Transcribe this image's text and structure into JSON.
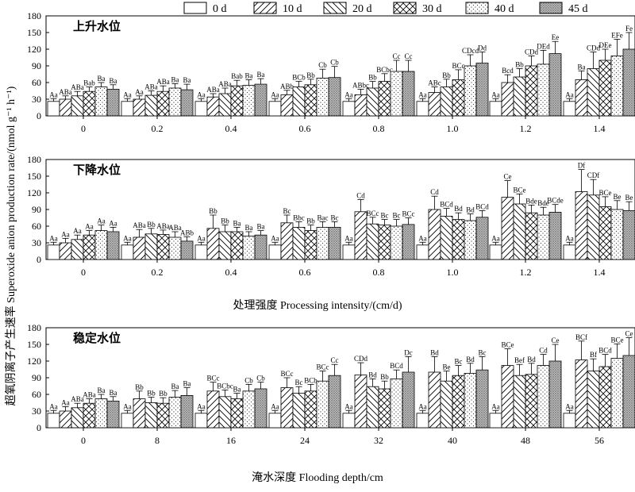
{
  "legend": {
    "items": [
      {
        "label": "0 d",
        "pattern": "p0"
      },
      {
        "label": "10 d",
        "pattern": "p10"
      },
      {
        "label": "20 d",
        "pattern": "p20"
      },
      {
        "label": "30 d",
        "pattern": "p30"
      },
      {
        "label": "40 d",
        "pattern": "p40"
      },
      {
        "label": "45 d",
        "pattern": "p45"
      }
    ]
  },
  "y_axis_title": "超氧阴离子产生速率 Superoxide anion production rate/(nmol g⁻¹ h⁻¹)",
  "chart_data": [
    {
      "type": "bar",
      "title": "上升水位",
      "xlabel": "",
      "ylabel": "",
      "ylim": [
        0,
        180
      ],
      "yticks": [
        0,
        30,
        60,
        90,
        120,
        150,
        180
      ],
      "categories": [
        "0",
        "0.2",
        "0.4",
        "0.6",
        "0.8",
        "1.0",
        "1.2",
        "1.4"
      ],
      "series": [
        {
          "name": "0 d",
          "values": [
            26,
            26,
            26,
            26,
            26,
            26,
            26,
            26
          ],
          "errors": [
            5,
            5,
            5,
            5,
            5,
            5,
            5,
            5
          ],
          "labels": [
            "Aa",
            "Aa",
            "Aa",
            "Aa",
            "Aa",
            "Aa",
            "Aa",
            "Aa"
          ]
        },
        {
          "name": "10 d",
          "values": [
            30,
            30,
            34,
            38,
            38,
            42,
            60,
            65
          ],
          "errors": [
            6,
            6,
            6,
            8,
            10,
            10,
            14,
            16
          ],
          "labels": [
            "ABa",
            "Aa",
            "ABa",
            "ABb",
            "ABbc",
            "ABc",
            "Bcd",
            "Ba"
          ]
        },
        {
          "name": "20 d",
          "values": [
            36,
            37,
            40,
            52,
            50,
            52,
            70,
            85
          ],
          "errors": [
            8,
            8,
            10,
            10,
            12,
            14,
            15,
            30
          ],
          "labels": [
            "ABa",
            "ABa",
            "ABa",
            "BCb",
            "Bb",
            "Bb",
            "Bb",
            "CDd"
          ]
        },
        {
          "name": "30 d",
          "values": [
            44,
            44,
            54,
            56,
            62,
            65,
            90,
            100
          ],
          "errors": [
            8,
            10,
            10,
            10,
            14,
            18,
            18,
            20
          ],
          "labels": [
            "Bab",
            "ABa",
            "Bab",
            "Bb",
            "BCbc",
            "BCc",
            "CDd",
            "DEe"
          ]
        },
        {
          "name": "40 d",
          "values": [
            52,
            50,
            55,
            68,
            80,
            90,
            93,
            108
          ],
          "errors": [
            8,
            8,
            10,
            16,
            20,
            20,
            25,
            30
          ],
          "labels": [
            "Ba",
            "Ba",
            "Ba",
            "Cb",
            "Cc",
            "CDcd",
            "DEd",
            "EFe"
          ]
        },
        {
          "name": "45 d",
          "values": [
            48,
            47,
            57,
            69,
            80,
            95,
            112,
            120
          ],
          "errors": [
            8,
            10,
            10,
            20,
            20,
            20,
            22,
            30
          ],
          "labels": [
            "Ba",
            "Ba",
            "Ba",
            "Cb",
            "Cc",
            "Dd",
            "Ee",
            "Fe"
          ]
        }
      ]
    },
    {
      "type": "bar",
      "title": "下降水位",
      "xlabel": "处理强度 Processing intensity/(cm/d)",
      "ylabel": "",
      "ylim": [
        0,
        180
      ],
      "yticks": [
        0,
        30,
        60,
        90,
        120,
        150,
        180
      ],
      "categories": [
        "0",
        "0.2",
        "0.4",
        "0.6",
        "0.8",
        "1.0",
        "1.2",
        "1.4"
      ],
      "series": [
        {
          "name": "0 d",
          "values": [
            26,
            26,
            26,
            26,
            26,
            26,
            26,
            26
          ],
          "errors": [
            5,
            5,
            5,
            5,
            5,
            5,
            5,
            5
          ],
          "labels": [
            "Aa",
            "Aa",
            "Aa",
            "Aa",
            "Aa",
            "Aa",
            "Aa",
            "Aa"
          ]
        },
        {
          "name": "10 d",
          "values": [
            30,
            40,
            56,
            66,
            86,
            90,
            112,
            122
          ],
          "errors": [
            8,
            14,
            24,
            14,
            22,
            24,
            30,
            40
          ],
          "labels": [
            "Aa",
            "ABa",
            "Bb",
            "Bc",
            "Cd",
            "Cd",
            "Ce",
            "Df"
          ]
        },
        {
          "name": "20 d",
          "values": [
            36,
            46,
            50,
            58,
            64,
            78,
            100,
            116
          ],
          "errors": [
            8,
            10,
            12,
            10,
            12,
            14,
            18,
            28
          ],
          "labels": [
            "Aa",
            "Bb",
            "Bb",
            "Bbc",
            "BCc",
            "BCd",
            "BCe",
            "CDf"
          ]
        },
        {
          "name": "30 d",
          "values": [
            44,
            45,
            50,
            52,
            62,
            72,
            84,
            95
          ],
          "errors": [
            8,
            8,
            8,
            10,
            10,
            12,
            14,
            18
          ],
          "labels": [
            "Aa",
            "ABa",
            "Ba",
            "Bb",
            "Bc",
            "Bd",
            "Bde",
            "BCe"
          ]
        },
        {
          "name": "40 d",
          "values": [
            52,
            40,
            42,
            58,
            60,
            70,
            80,
            90
          ],
          "errors": [
            10,
            10,
            8,
            10,
            12,
            12,
            14,
            16
          ],
          "labels": [
            "Aa",
            "ABa",
            "Ba",
            "Bac",
            "Bc",
            "Bd",
            "Bde",
            "Be"
          ]
        },
        {
          "name": "45 d",
          "values": [
            50,
            33,
            44,
            58,
            63,
            76,
            85,
            88
          ],
          "errors": [
            8,
            8,
            8,
            10,
            12,
            12,
            14,
            16
          ],
          "labels": [
            "Aa",
            "ABb",
            "Ba",
            "Bc",
            "BCc",
            "BCd",
            "BCde",
            "Be"
          ]
        }
      ]
    },
    {
      "type": "bar",
      "title": "稳定水位",
      "xlabel": "淹水深度 Flooding depth/cm",
      "ylabel": "",
      "ylim": [
        0,
        180
      ],
      "yticks": [
        0,
        30,
        60,
        90,
        120,
        150,
        180
      ],
      "categories": [
        "0",
        "8",
        "16",
        "24",
        "32",
        "40",
        "48",
        "56"
      ],
      "series": [
        {
          "name": "0 d",
          "values": [
            26,
            26,
            26,
            26,
            26,
            26,
            26,
            26
          ],
          "errors": [
            5,
            5,
            5,
            5,
            5,
            5,
            5,
            5
          ],
          "labels": [
            "Aa",
            "Aa",
            "Aa",
            "Aa",
            "Aa",
            "Aa",
            "Aa",
            "Aa"
          ]
        },
        {
          "name": "10 d",
          "values": [
            30,
            52,
            66,
            72,
            95,
            100,
            112,
            122
          ],
          "errors": [
            8,
            14,
            16,
            18,
            22,
            28,
            30,
            34
          ],
          "labels": [
            "Aa",
            "Bb",
            "BCc",
            "BCc",
            "CDd",
            "Bd",
            "BCe",
            "BCf"
          ]
        },
        {
          "name": "20 d",
          "values": [
            36,
            45,
            56,
            62,
            74,
            84,
            94,
            102
          ],
          "errors": [
            8,
            10,
            12,
            12,
            14,
            18,
            20,
            22
          ],
          "labels": [
            "ABa",
            "Bb",
            "BCbc",
            "Bc",
            "Bd",
            "Be",
            "Bef",
            "Bf"
          ]
        },
        {
          "name": "30 d",
          "values": [
            44,
            44,
            52,
            66,
            70,
            94,
            96,
            110
          ],
          "errors": [
            8,
            10,
            10,
            12,
            14,
            18,
            20,
            22
          ],
          "labels": [
            "ABa",
            "Bb",
            "Ba",
            "BCb",
            "Bb",
            "Bc",
            "Bd",
            "BCd"
          ]
        },
        {
          "name": "40 d",
          "values": [
            52,
            55,
            66,
            84,
            88,
            98,
            112,
            125
          ],
          "errors": [
            8,
            12,
            12,
            18,
            16,
            18,
            20,
            26
          ],
          "labels": [
            "Ba",
            "Ba",
            "Cb",
            "BCc",
            "BCd",
            "Bd",
            "Cd",
            "BCe"
          ]
        },
        {
          "name": "45 d",
          "values": [
            48,
            58,
            70,
            94,
            100,
            104,
            120,
            130
          ],
          "errors": [
            8,
            14,
            12,
            20,
            28,
            24,
            30,
            32
          ],
          "labels": [
            "Ba",
            "Ba",
            "Cb",
            "Cc",
            "Dc",
            "Bc",
            "Ce",
            "Ce"
          ]
        }
      ]
    }
  ]
}
